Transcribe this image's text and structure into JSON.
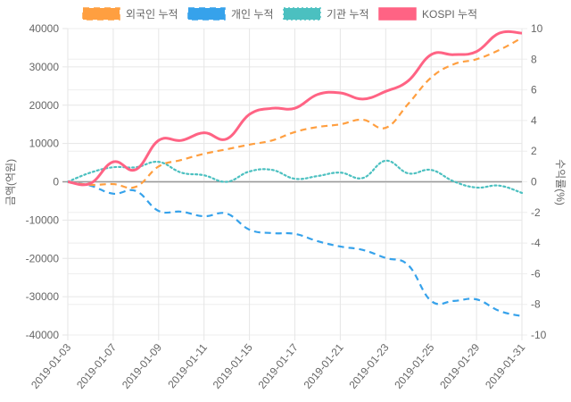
{
  "chart_data": {
    "type": "line",
    "title": "",
    "x": [
      "2019-01-03",
      "2019-01-04",
      "2019-01-07",
      "2019-01-08",
      "2019-01-09",
      "2019-01-10",
      "2019-01-11",
      "2019-01-14",
      "2019-01-15",
      "2019-01-16",
      "2019-01-17",
      "2019-01-18",
      "2019-01-21",
      "2019-01-22",
      "2019-01-23",
      "2019-01-24",
      "2019-01-25",
      "2019-01-28",
      "2019-01-29",
      "2019-01-30",
      "2019-01-31"
    ],
    "x_tick_labels": [
      "2019-01-03",
      "2019-01-07",
      "2019-01-09",
      "2019-01-11",
      "2019-01-15",
      "2019-01-17",
      "2019-01-21",
      "2019-01-23",
      "2019-01-25",
      "2019-01-29",
      "2019-01-31"
    ],
    "ylabel": "금액(억원)",
    "y2label": "수익률(%)",
    "ylim": [
      -40000,
      40000
    ],
    "y2lim": [
      -10,
      10
    ],
    "y_ticks": [
      "40000",
      "30000",
      "20000",
      "10000",
      "0",
      "-10000",
      "-20000",
      "-30000",
      "-40000"
    ],
    "y2_ticks": [
      "10",
      "8",
      "6",
      "4",
      "2",
      "0",
      "-2",
      "-4",
      "-6",
      "-8",
      "-10"
    ],
    "legend_position": "top",
    "series": [
      {
        "name": "외국인 누적",
        "axis": "left",
        "color": "#ff9f40",
        "style": "dashed",
        "values": [
          0,
          -800,
          -600,
          -1300,
          4000,
          5700,
          7300,
          8500,
          9700,
          10800,
          13000,
          14300,
          15000,
          16200,
          14100,
          20400,
          27200,
          30700,
          32000,
          34400,
          37600
        ]
      },
      {
        "name": "개인 누적",
        "axis": "left",
        "color": "#36a2eb",
        "style": "dashed",
        "values": [
          0,
          -1000,
          -3100,
          -2400,
          -7600,
          -7800,
          -9000,
          -8300,
          -12500,
          -13400,
          -13600,
          -15500,
          -16900,
          -17800,
          -19900,
          -21800,
          -31100,
          -31100,
          -30700,
          -33700,
          -35100
        ]
      },
      {
        "name": "기관 누적",
        "axis": "left",
        "color": "#4bc0c0",
        "style": "dotted",
        "values": [
          0,
          2400,
          3800,
          3800,
          5200,
          2400,
          1700,
          0,
          2700,
          3100,
          800,
          1500,
          2400,
          1000,
          5500,
          2200,
          3100,
          100,
          -1500,
          -1000,
          -2900
        ]
      },
      {
        "name": "KOSPI 누적",
        "axis": "right",
        "color": "#ff6384",
        "style": "solid",
        "values": [
          0,
          -0.1,
          1.3,
          0.8,
          2.7,
          2.7,
          3.2,
          2.8,
          4.4,
          4.8,
          4.8,
          5.7,
          5.8,
          5.4,
          5.9,
          6.6,
          8.3,
          8.3,
          8.5,
          9.7,
          9.7
        ]
      }
    ]
  }
}
